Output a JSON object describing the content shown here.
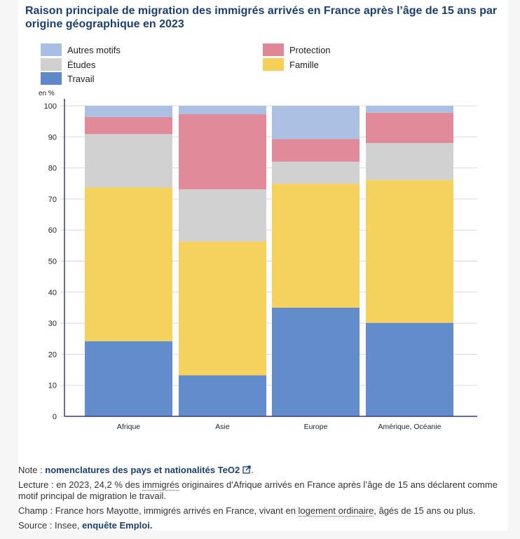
{
  "title": "Raison principale de migration des immigrés arrivés en France après l’âge de 15 ans par origine géographique en 2023",
  "colors": {
    "title": "#1d3f6e",
    "autres_motifs": "#a8bfe3",
    "protection": "#e08797",
    "etudes": "#d0d0d0",
    "famille": "#f5cf58",
    "travail": "#5e88ca",
    "axis": "#3a3a80",
    "grid": "#d8d8d8"
  },
  "legend": [
    {
      "label": "Autres motifs",
      "key": "autres_motifs"
    },
    {
      "label": "Protection",
      "key": "protection"
    },
    {
      "label": "Études",
      "key": "etudes"
    },
    {
      "label": "Famille",
      "key": "famille"
    },
    {
      "label": "Travail",
      "key": "travail"
    }
  ],
  "chart_data": {
    "type": "bar",
    "stacked": true,
    "title": "Raison principale de migration des immigrés arrivés en France après l’âge de 15 ans par origine géographique en 2023",
    "xlabel": "",
    "ylabel": "en %",
    "ylim": [
      0,
      100
    ],
    "yticks": [
      0,
      10,
      20,
      30,
      40,
      50,
      60,
      70,
      80,
      90,
      100
    ],
    "grid": true,
    "legend_position": "top",
    "categories": [
      "Afrique",
      "Asie",
      "Europe",
      "Amérique, Océanie"
    ],
    "series": [
      {
        "name": "Travail",
        "key": "travail",
        "values": [
          24.2,
          13.2,
          35.0,
          30.1
        ]
      },
      {
        "name": "Famille",
        "key": "famille",
        "values": [
          49.5,
          43.1,
          39.9,
          46.0
        ]
      },
      {
        "name": "Études",
        "key": "etudes",
        "values": [
          17.2,
          16.8,
          7.1,
          11.9
        ]
      },
      {
        "name": "Protection",
        "key": "protection",
        "values": [
          5.5,
          24.2,
          7.3,
          9.8
        ]
      },
      {
        "name": "Autres motifs",
        "key": "autres_motifs",
        "values": [
          3.6,
          2.7,
          10.7,
          2.2
        ]
      }
    ]
  },
  "notes": {
    "note_prefix": "Note : ",
    "note_link": "nomenclatures des pays et nationalités TeO2",
    "note_suffix": ".",
    "lecture_prefix": "Lecture : en 2023, 24,2 % des ",
    "lecture_term": "immigrés",
    "lecture_suffix": " originaires d'Afrique arrivés en France après l’âge de 15 ans déclarent comme motif principal de migration le travail.",
    "champ_prefix": "Champ : France hors Mayotte, immigrés arrivés en France, vivant en ",
    "champ_term": "logement ordinaire",
    "champ_suffix": ", âgés de 15 ans ou plus.",
    "source_prefix": "Source : Insee, ",
    "source_link": "enquête Emploi."
  }
}
